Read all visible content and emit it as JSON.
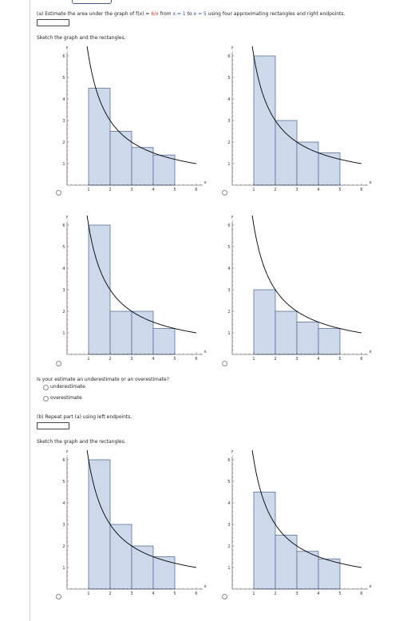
{
  "part_a": {
    "prompt_prefix": "(a) Estimate the area under the graph of",
    "function_name": "f(x) =",
    "function_expr": "6/x",
    "range_text": "from",
    "x_start": "x = 1",
    "to_text": "to",
    "x_end": "x = 5",
    "method_text": "using four approximating rectangles and right endpoints.",
    "sketch_label": "Sketch the graph and the rectangles.",
    "question": "Is your estimate an underestimate or an overestimate?",
    "options": [
      "underestimate",
      "overestimate"
    ]
  },
  "part_b": {
    "prompt": "(b) Repeat part (a) using left endpoints.",
    "sketch_label": "Sketch the graph and the rectangles."
  },
  "graph_axes": {
    "x_label": "x",
    "y_label": "y",
    "x_ticks": [
      "1",
      "2",
      "3",
      "4",
      "5",
      "6"
    ],
    "y_ticks": [
      "1",
      "2",
      "3",
      "4",
      "5",
      "6"
    ]
  },
  "graphs": [
    {
      "name": "a-option-1",
      "heights": [
        4.5,
        2.5,
        1.75,
        1.4
      ]
    },
    {
      "name": "a-option-2",
      "heights": [
        6,
        3,
        2,
        1.5
      ]
    },
    {
      "name": "a-option-3",
      "heights": [
        6,
        2,
        2,
        1.2
      ]
    },
    {
      "name": "a-option-4",
      "heights": [
        3,
        2,
        1.5,
        1.2
      ]
    },
    {
      "name": "b-option-1",
      "heights": [
        6,
        3,
        2,
        1.5
      ]
    },
    {
      "name": "b-option-2",
      "heights": [
        4.5,
        2.5,
        1.75,
        1.4
      ]
    }
  ],
  "colors": {
    "rect_fill": "#cdd8ea",
    "rect_stroke": "#5a6f9a",
    "curve": "#000000",
    "axis": "#333333"
  }
}
